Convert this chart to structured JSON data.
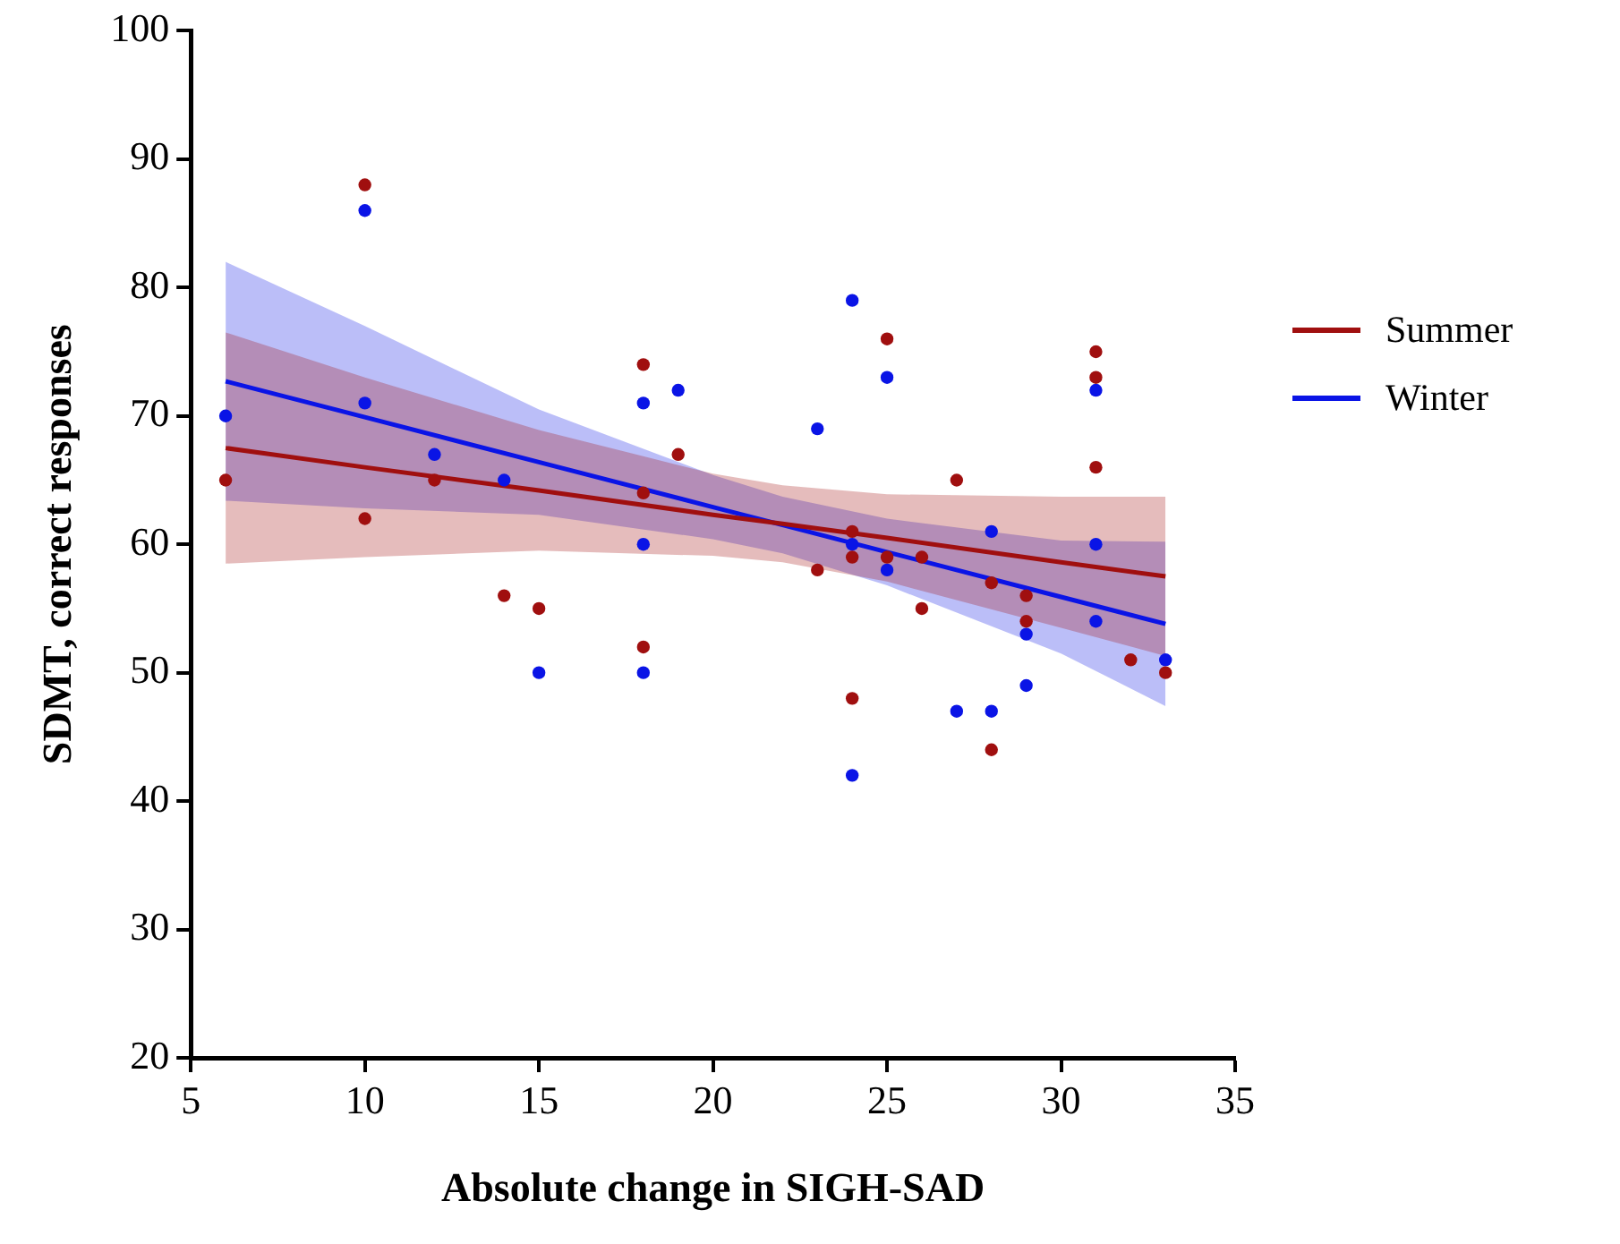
{
  "chart_data": {
    "type": "scatter",
    "xlabel": "Absolute change in SIGH-SAD",
    "ylabel": "SDMT, correct responses",
    "xlim": [
      5,
      35
    ],
    "xticks": [
      5,
      10,
      15,
      20,
      25,
      30,
      35
    ],
    "ylim": [
      20,
      100
    ],
    "yticks": [
      20,
      30,
      40,
      50,
      60,
      70,
      80,
      90,
      100
    ],
    "grid": false,
    "legend": "right",
    "line_style": "solid",
    "series": [
      {
        "marker": "circle",
        "color": "#a00f0f",
        "x": [
          6,
          10,
          10,
          12,
          14,
          15,
          18,
          18,
          18,
          19,
          23,
          24,
          24,
          24,
          25,
          25,
          26,
          26,
          27,
          28,
          28,
          29,
          29,
          31,
          31,
          31,
          32,
          33
        ],
        "values": [
          65,
          88,
          62,
          65,
          56,
          55,
          74,
          64,
          52,
          67,
          58,
          61,
          59,
          48,
          76,
          59,
          59,
          55,
          65,
          57,
          44,
          56,
          54,
          75,
          73,
          66,
          51,
          50
        ]
      },
      {
        "marker": "circle",
        "color": "#0a14e6",
        "x": [
          6,
          10,
          10,
          12,
          14,
          15,
          18,
          18,
          18,
          19,
          23,
          24,
          24,
          24,
          25,
          25,
          27,
          28,
          28,
          29,
          29,
          31,
          31,
          31,
          33
        ],
        "values": [
          70,
          86,
          71,
          67,
          65,
          50,
          71,
          60,
          50,
          72,
          69,
          79,
          60,
          42,
          73,
          58,
          47,
          61,
          47,
          53,
          49,
          72,
          60,
          54,
          51
        ]
      },
      {
        "type": "line",
        "marker": "none",
        "name": "Summer",
        "color": "#a00f0f",
        "x": [
          6,
          10,
          15,
          20,
          22,
          25,
          30,
          33
        ],
        "values": [
          67.5,
          66.0,
          64.2,
          62.3,
          61.6,
          60.5,
          58.6,
          57.5
        ],
        "lower": [
          58.5,
          59.0,
          59.5,
          59.1,
          58.6,
          57.1,
          53.5,
          51.3
        ],
        "upper": [
          76.5,
          73.0,
          68.9,
          65.5,
          64.6,
          63.9,
          63.7,
          63.7
        ]
      },
      {
        "type": "line",
        "marker": "none",
        "name": "Winter",
        "color": "#0a14e6",
        "x": [
          6,
          10,
          15,
          20,
          22,
          25,
          30,
          33
        ],
        "values": [
          72.7,
          69.9,
          66.4,
          62.9,
          61.5,
          59.4,
          55.9,
          53.8
        ],
        "lower": [
          63.4,
          62.8,
          62.3,
          60.4,
          59.3,
          56.8,
          51.5,
          47.4
        ],
        "upper": [
          82.0,
          77.0,
          70.5,
          65.4,
          63.7,
          62.0,
          60.3,
          60.2
        ]
      }
    ]
  }
}
